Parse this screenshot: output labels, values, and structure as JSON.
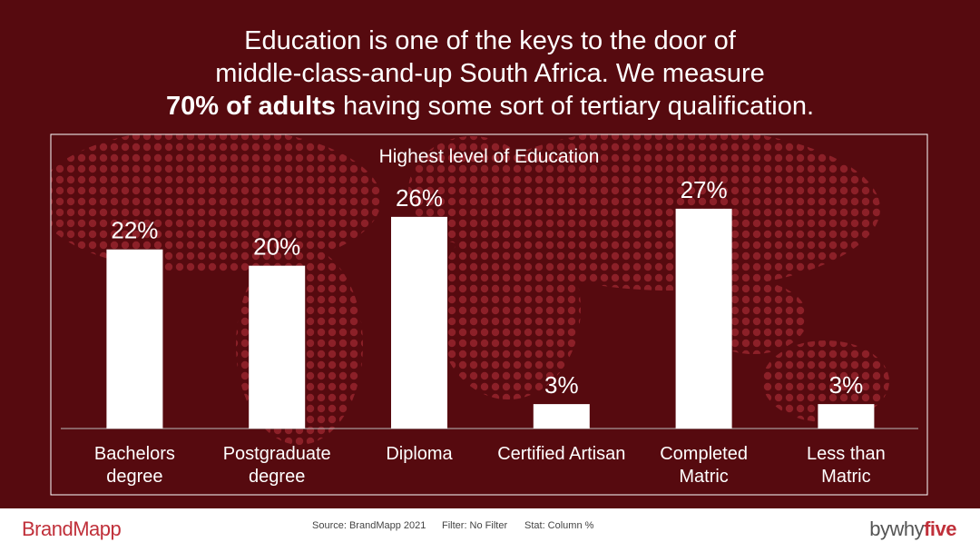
{
  "chart_data": {
    "type": "bar",
    "headline": {
      "lines": [
        "Education is one of the keys to the door of",
        "middle-class-and-up South Africa. We measure"
      ],
      "bold": "70% of adults",
      "end": "having some sort of tertiary qualification."
    },
    "title": "Highest level of Education",
    "categories": [
      "Bachelors\ndegree",
      "Postgraduate\ndegree",
      "Diploma",
      "Certified Artisan",
      "Completed\nMatric",
      "Less than\nMatric"
    ],
    "values": [
      22,
      20,
      26,
      3,
      27,
      3
    ],
    "value_labels": [
      "22%",
      "20%",
      "26%",
      "3%",
      "27%",
      "3%"
    ],
    "color": "#ffffff",
    "ylim": [
      0,
      30
    ]
  },
  "footer": {
    "brand": "BrandMapp",
    "source": "Source: BrandMapp 2021",
    "filter": "Filter: No Filter",
    "stat": "Stat: Column %",
    "logo": [
      "by",
      "why",
      "five"
    ]
  }
}
